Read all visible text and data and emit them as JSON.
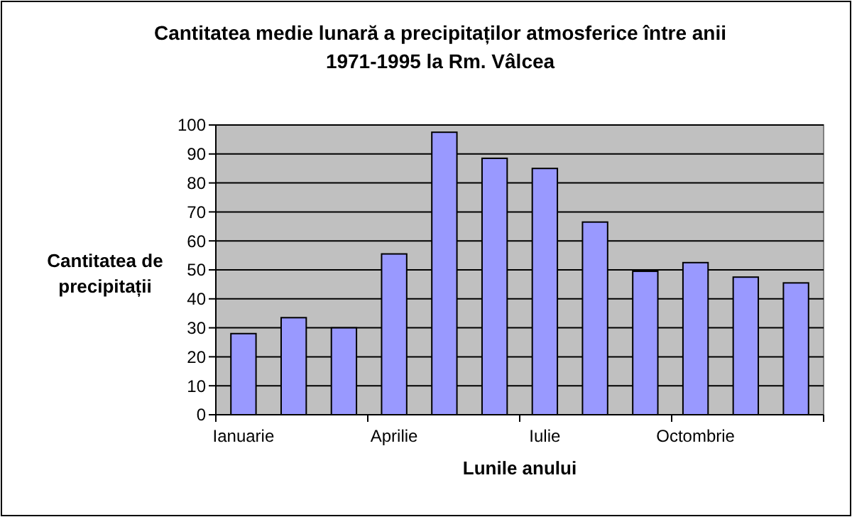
{
  "chart_data": {
    "type": "bar",
    "title": "Cantitatea medie lunară a precipitaților atmosferice între anii 1971-1995 la Rm. Vâlcea",
    "xlabel": "Lunile anului",
    "ylabel": "Cantitatea de precipitații",
    "categories": [
      "Ianuarie",
      null,
      null,
      "Aprilie",
      null,
      null,
      "Iulie",
      null,
      null,
      "Octombrie",
      null,
      null
    ],
    "values": [
      28,
      33.5,
      30,
      55.5,
      97.5,
      88.5,
      85,
      66.5,
      49.5,
      52.5,
      47.5,
      45.5
    ],
    "color": "#9999ff",
    "ylim": [
      0,
      100
    ],
    "yticks": [
      0,
      10,
      20,
      30,
      40,
      50,
      60,
      70,
      80,
      90,
      100
    ],
    "grid": "y"
  }
}
